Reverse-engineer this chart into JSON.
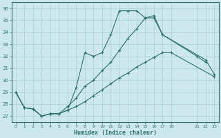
{
  "xlabel": "Humidex (Indice chaleur)",
  "background_color": "#cce8ec",
  "grid_color": "#aacfd4",
  "line_color": "#2d7068",
  "xlim": [
    -0.5,
    23.5
  ],
  "ylim": [
    26.5,
    36.5
  ],
  "xticks": [
    0,
    1,
    2,
    3,
    4,
    5,
    6,
    7,
    8,
    9,
    10,
    11,
    12,
    13,
    14,
    15,
    16,
    17,
    18,
    21,
    22,
    23
  ],
  "yticks": [
    27,
    28,
    29,
    30,
    31,
    32,
    33,
    34,
    35,
    36
  ],
  "line1_x": [
    0,
    1,
    2,
    3,
    4,
    5,
    6,
    7,
    8,
    9,
    10,
    11,
    12,
    13,
    14,
    15,
    16,
    17,
    21,
    22
  ],
  "line1_y": [
    29.0,
    27.7,
    27.6,
    27.0,
    27.2,
    27.2,
    27.5,
    29.4,
    32.3,
    32.0,
    32.3,
    33.8,
    35.8,
    35.8,
    35.8,
    35.2,
    35.4,
    33.8,
    32.0,
    31.5
  ],
  "line2_x": [
    0,
    1,
    2,
    3,
    4,
    5,
    6,
    7,
    8,
    9,
    10,
    11,
    12,
    13,
    14,
    15,
    16,
    17,
    22,
    23
  ],
  "line2_y": [
    29.0,
    27.7,
    27.6,
    27.0,
    27.2,
    27.2,
    27.8,
    28.5,
    29.5,
    30.0,
    30.8,
    31.5,
    32.5,
    33.5,
    34.3,
    35.2,
    35.2,
    33.8,
    31.7,
    30.5
  ],
  "line3_x": [
    0,
    1,
    2,
    3,
    4,
    5,
    6,
    7,
    8,
    9,
    10,
    11,
    12,
    13,
    14,
    15,
    16,
    17,
    18,
    23
  ],
  "line3_y": [
    29.0,
    27.7,
    27.6,
    27.0,
    27.2,
    27.2,
    27.5,
    27.8,
    28.2,
    28.7,
    29.2,
    29.7,
    30.2,
    30.6,
    31.1,
    31.5,
    31.9,
    32.3,
    32.3,
    30.3
  ]
}
